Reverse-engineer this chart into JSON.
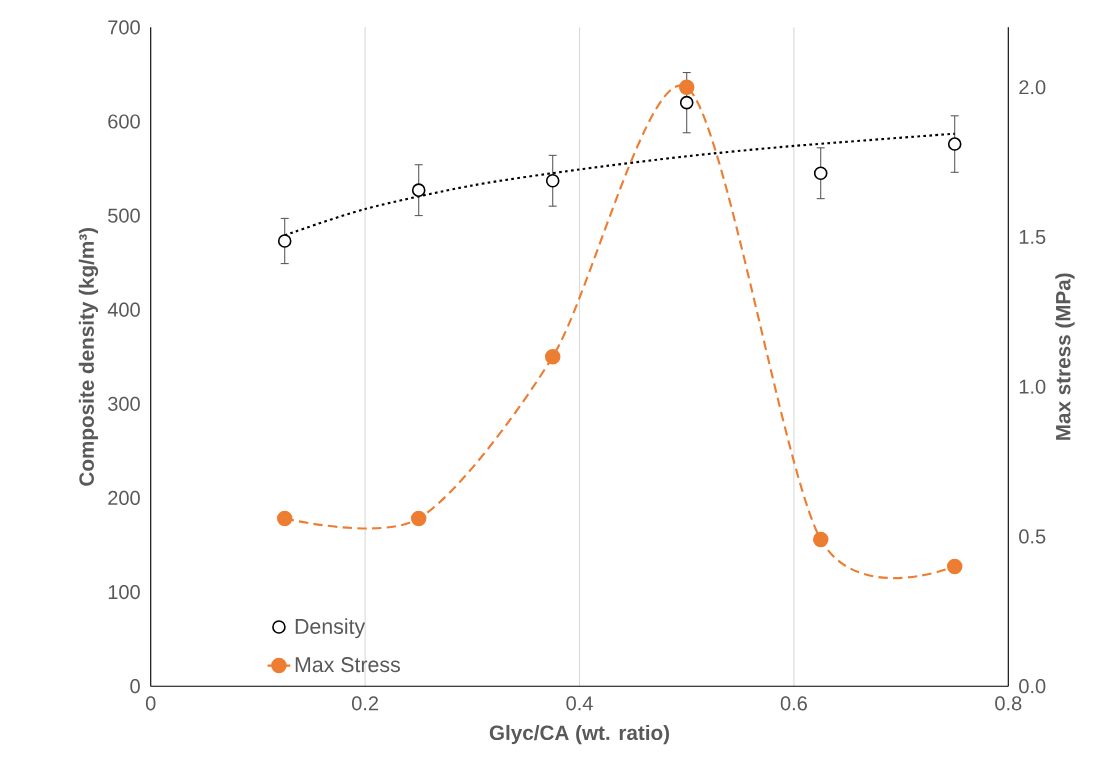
{
  "chart_data": {
    "type": "scatter",
    "xlabel": "Glyc/CA (wt. ratio)",
    "ylabel": "Composite density (kg/m³)",
    "y2label": "Max stress (MPa)",
    "xlim": [
      0,
      0.8
    ],
    "xticks": [
      0,
      0.2,
      0.4,
      0.6,
      0.8
    ],
    "ylim": [
      0,
      700
    ],
    "yticks": [
      0,
      100,
      200,
      300,
      400,
      500,
      600,
      700
    ],
    "y2lim": [
      0,
      2.2
    ],
    "y2ticks": [
      {
        "value": 0,
        "label": "0.0"
      },
      {
        "value": 0.5,
        "label": "0.5"
      },
      {
        "value": 1,
        "label": "1.0"
      },
      {
        "value": 1.5,
        "label": "1.5"
      },
      {
        "value": 2,
        "label": "2.0"
      }
    ],
    "grid": "x",
    "legend": "bottom left",
    "series": [
      {
        "name": "Density",
        "marker": "circle",
        "color": "#000000",
        "x": [
          0.125,
          0.25,
          0.375,
          0.5,
          0.625,
          0.75
        ],
        "values": [
          473,
          527,
          537,
          620,
          545,
          576
        ],
        "errors": [
          24,
          27,
          27,
          32,
          27,
          30
        ]
      },
      {
        "type": "line",
        "line_style": "dotted",
        "marker": "none",
        "color": "#000000",
        "x": [
          0.125,
          0.2,
          0.3,
          0.4,
          0.5,
          0.6,
          0.75
        ],
        "values": [
          479,
          507,
          532,
          549,
          563,
          574,
          587
        ]
      },
      {
        "name": "Max Stress",
        "type": "line",
        "axis": "y2",
        "line_style": "dashed",
        "marker": "circle",
        "color": "#ed7d31",
        "x": [
          0.125,
          0.25,
          0.375,
          0.5,
          0.625,
          0.75
        ],
        "values": [
          0.56,
          0.56,
          1.1,
          2.0,
          0.49,
          0.4
        ]
      }
    ]
  }
}
